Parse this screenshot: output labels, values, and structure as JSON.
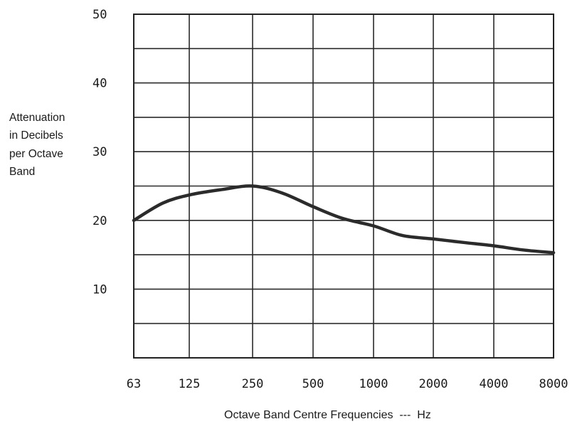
{
  "chart_data": {
    "type": "line",
    "title": "",
    "ylabel_lines": [
      "Attenuation",
      "in Decibels",
      "per Octave",
      "Band"
    ],
    "xlabel": "Octave Band Centre Frequencies  ---  Hz",
    "x_categories": [
      "63",
      "125",
      "250",
      "500",
      "1000",
      "2000",
      "4000",
      "8000"
    ],
    "y_ticks": [
      "50",
      "40",
      "30",
      "20",
      "10"
    ],
    "ylim": [
      0,
      50
    ],
    "grid": true,
    "series": [
      {
        "x": [
          63,
          90,
          125,
          180,
          250,
          350,
          500,
          700,
          1000,
          1400,
          2000,
          2800,
          4000,
          5600,
          8000
        ],
        "values": [
          20,
          22.5,
          23.7,
          24.5,
          25,
          24,
          22,
          20.3,
          19.2,
          17.8,
          17.3,
          16.8,
          16.3,
          15.7,
          15.3
        ]
      }
    ]
  }
}
